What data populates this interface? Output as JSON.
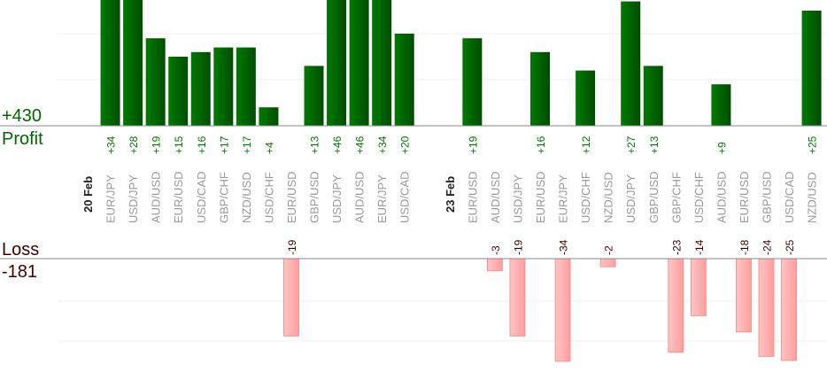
{
  "chart_data": {
    "type": "bar",
    "profit_total": "+430",
    "profit_label": "Profit",
    "loss_label": "Loss",
    "loss_total": "-181",
    "colors": {
      "profit": "#006600",
      "profit_text": "#007700",
      "loss": "#ffb3b3",
      "loss_text": "#400000",
      "pair_text": "#999999"
    },
    "groups": [
      {
        "date": "20 Feb",
        "trades": [
          {
            "pair": "EUR/JPY",
            "value": 34
          },
          {
            "pair": "USD/JPY",
            "value": 28
          },
          {
            "pair": "AUD/USD",
            "value": 19
          },
          {
            "pair": "EUR/USD",
            "value": 15
          },
          {
            "pair": "USD/CAD",
            "value": 16
          },
          {
            "pair": "GBP/CHF",
            "value": 17
          },
          {
            "pair": "NZD/USD",
            "value": 17
          },
          {
            "pair": "USD/CHF",
            "value": 4
          },
          {
            "pair": "EUR/USD",
            "value": -19
          },
          {
            "pair": "GBP/USD",
            "value": 13
          },
          {
            "pair": "USD/JPY",
            "value": 46
          },
          {
            "pair": "AUD/USD",
            "value": 46
          },
          {
            "pair": "EUR/JPY",
            "value": 34
          },
          {
            "pair": "USD/CAD",
            "value": 20
          }
        ]
      },
      {
        "date": "23 Feb",
        "trades": [
          {
            "pair": "EUR/USD",
            "value": 19
          },
          {
            "pair": "AUD/USD",
            "value": -3
          },
          {
            "pair": "USD/JPY",
            "value": -19
          },
          {
            "pair": "EUR/USD",
            "value": 16
          },
          {
            "pair": "EUR/JPY",
            "value": -34
          },
          {
            "pair": "USD/CHF",
            "value": 12
          },
          {
            "pair": "NZD/USD",
            "value": -2
          },
          {
            "pair": "USD/JPY",
            "value": 27
          },
          {
            "pair": "GBP/USD",
            "value": 13
          },
          {
            "pair": "GBP/CHF",
            "value": -23
          },
          {
            "pair": "USD/CHF",
            "value": -14
          },
          {
            "pair": "AUD/USD",
            "value": 9
          },
          {
            "pair": "EUR/USD",
            "value": -18
          },
          {
            "pair": "GBP/USD",
            "value": -24
          },
          {
            "pair": "USD/CAD",
            "value": -25
          },
          {
            "pair": "NZD/USD",
            "value": 25
          }
        ]
      }
    ]
  }
}
